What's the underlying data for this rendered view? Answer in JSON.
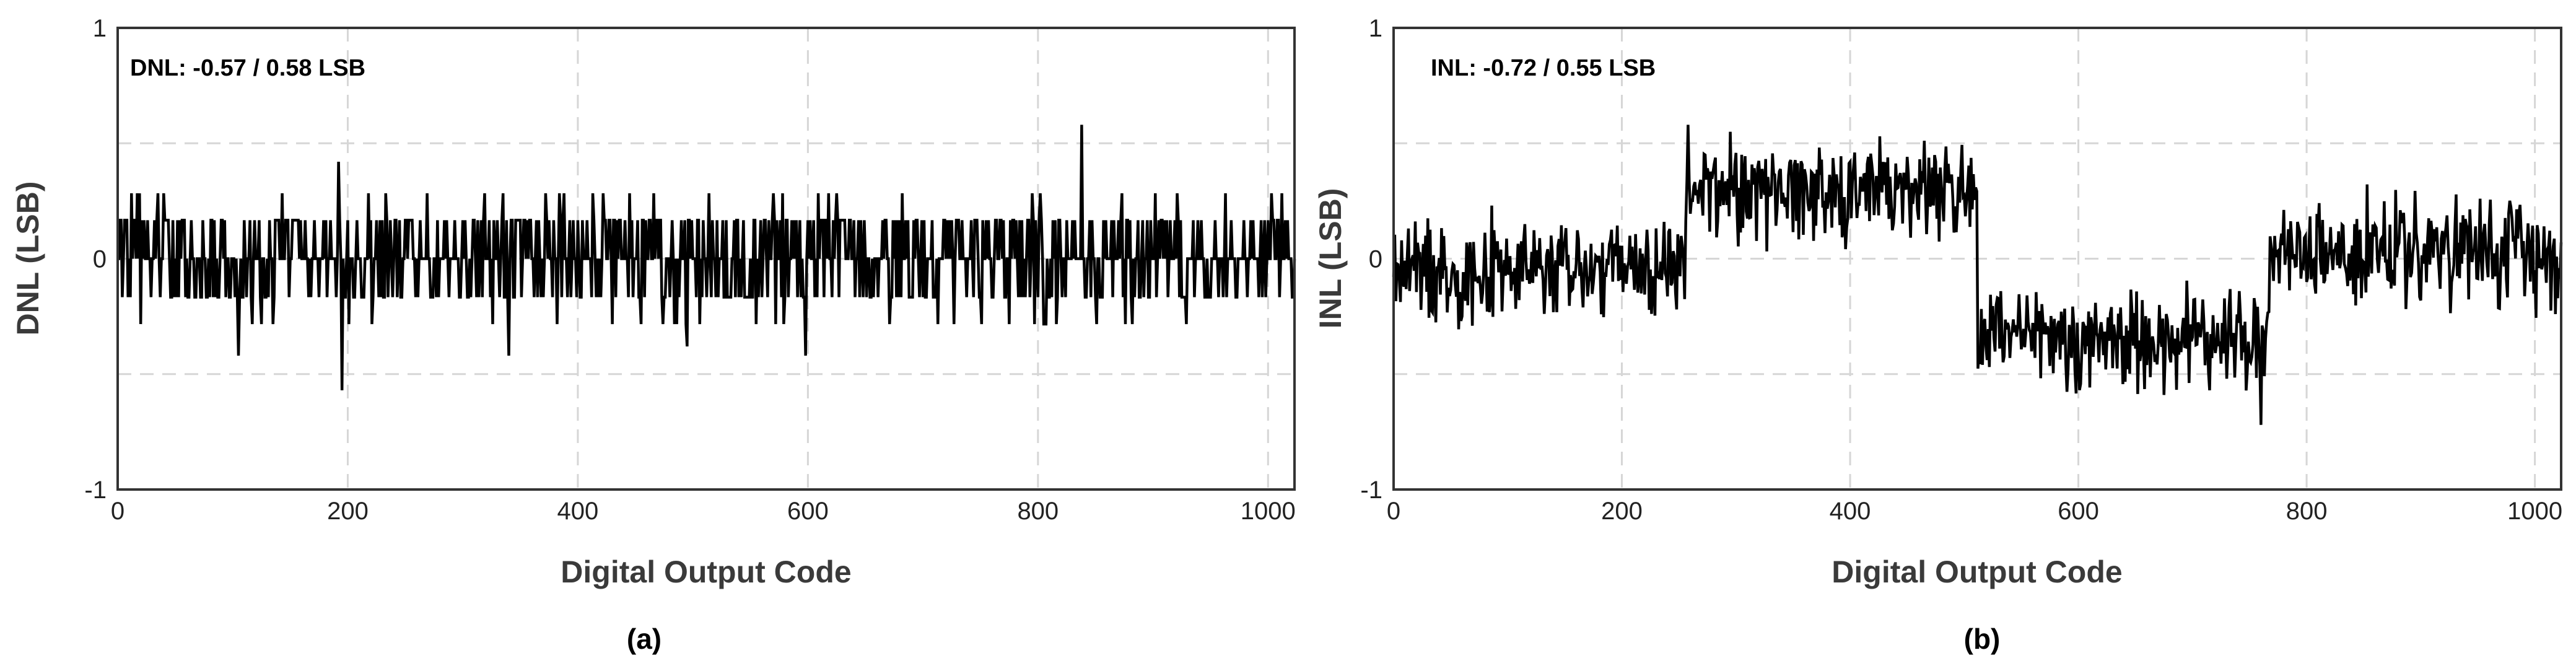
{
  "chart_data": [
    {
      "type": "line",
      "panel": "a",
      "annotation": "DNL: -0.57 / 0.58 LSB",
      "ylabel": "DNL (LSB)",
      "xlabel": "Digital Output Code",
      "caption": "(a)",
      "xlim": [
        0,
        1023
      ],
      "ylim": [
        -1,
        1
      ],
      "xticks": [
        "0",
        "200",
        "400",
        "600",
        "800",
        "1000"
      ],
      "xtick_values": [
        0,
        200,
        400,
        600,
        800,
        1000
      ],
      "yticks": [
        "-1",
        "0",
        "1"
      ],
      "ytick_values": [
        -1,
        0,
        1
      ],
      "y_gridlines": [
        -0.5,
        0,
        0.5
      ],
      "grid": true,
      "series": [
        {
          "color": "#000000",
          "x_start": 0,
          "x_end": 1023,
          "approx_min": -0.57,
          "approx_max": 0.58,
          "approx_band_low": -0.2,
          "approx_band_high": 0.2,
          "spikes": [
            {
              "x": 105,
              "y": -0.42
            },
            {
              "x": 192,
              "y": 0.42
            },
            {
              "x": 195,
              "y": -0.57
            },
            {
              "x": 340,
              "y": -0.42
            },
            {
              "x": 495,
              "y": -0.38
            },
            {
              "x": 598,
              "y": -0.42
            },
            {
              "x": 838,
              "y": 0.58
            }
          ]
        }
      ]
    },
    {
      "type": "line",
      "panel": "b",
      "annotation": "INL: -0.72 / 0.55 LSB",
      "ylabel": "INL (LSB)",
      "xlabel": "Digital Output Code",
      "caption": "(b)",
      "xlim": [
        0,
        1023
      ],
      "ylim": [
        -1,
        1
      ],
      "xticks": [
        "0",
        "200",
        "400",
        "600",
        "800",
        "1000"
      ],
      "xtick_values": [
        0,
        200,
        400,
        600,
        800,
        1000
      ],
      "yticks": [
        "-1",
        "0",
        "1"
      ],
      "ytick_values": [
        -1,
        0,
        1
      ],
      "y_gridlines": [
        -0.5,
        0,
        0.5
      ],
      "grid": true,
      "series": [
        {
          "color": "#000000",
          "segments": [
            {
              "x_from": 0,
              "x_to": 255,
              "approx_mean": -0.05
            },
            {
              "x_from": 256,
              "x_to": 511,
              "approx_mean": 0.3
            },
            {
              "x_from": 512,
              "x_to": 767,
              "approx_mean": -0.35
            },
            {
              "x_from": 768,
              "x_to": 1023,
              "approx_mean": 0.02
            }
          ],
          "approx_min": -0.72,
          "approx_max": 0.55
        }
      ]
    }
  ]
}
